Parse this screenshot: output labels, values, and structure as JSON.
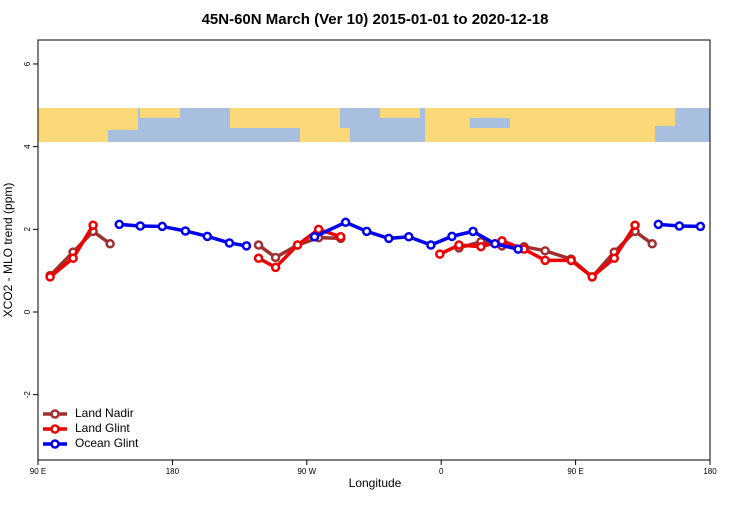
{
  "chart_data": {
    "type": "line",
    "title": "45N-60N March (Ver 10)   2015-01-01 to 2020-12-18",
    "x_label": "Longitude",
    "y_label": "XCO2 - MLO trend (ppm)",
    "xlim": [
      90,
      540
    ],
    "xticks": [
      {
        "value": 90,
        "label": "90 E"
      },
      {
        "value": 180,
        "label": "180"
      },
      {
        "value": 270,
        "label": "90 W"
      },
      {
        "value": 360,
        "label": "0"
      },
      {
        "value": 450,
        "label": "90 E"
      },
      {
        "value": 540,
        "label": "180"
      }
    ],
    "ylim": [
      -3.58,
      6.58
    ],
    "yticks": [
      -2,
      0,
      2,
      4,
      6
    ],
    "grid": false,
    "legend": "bottom-left",
    "series": [
      {
        "name": "Land Nadir",
        "color": "#a03030",
        "x": [
          98.1,
          113.5,
          126.9,
          138.3,
          190,
          237.7,
          249.1,
          263.8,
          277.9,
          292.7,
          330,
          371.9,
          386.6,
          400.7,
          415.5,
          429.6,
          447.0,
          461.1,
          475.9,
          489.8,
          501.3
        ],
        "values": [
          0.88,
          1.45,
          1.95,
          1.65,
          null,
          1.62,
          1.32,
          1.62,
          1.8,
          1.78,
          null,
          1.55,
          1.7,
          1.6,
          1.58,
          1.48,
          1.28,
          0.85,
          1.45,
          1.95,
          1.65
        ]
      },
      {
        "name": "Land Glint",
        "color": "#ee0000",
        "x": [
          98.1,
          113.5,
          126.9,
          180,
          237.7,
          249.1,
          263.8,
          277.9,
          292.7,
          330,
          359.1,
          371.9,
          386.6,
          400.7,
          415.5,
          429.6,
          447.0,
          461.1,
          475.9,
          489.8
        ],
        "values": [
          0.85,
          1.3,
          2.1,
          null,
          1.3,
          1.08,
          1.62,
          2.0,
          1.82,
          null,
          1.4,
          1.62,
          1.58,
          1.72,
          1.52,
          1.25,
          1.25,
          0.85,
          1.3,
          2.1
        ]
      },
      {
        "name": "Ocean Glint",
        "color": "#0000ee",
        "x": [
          144.4,
          158.5,
          173.2,
          188.7,
          203.4,
          218.2,
          229.6,
          250,
          275.2,
          296.0,
          310.1,
          324.9,
          338.3,
          353.1,
          367.2,
          381.3,
          396.0,
          411.5,
          460,
          505.4,
          519.5,
          533.6
        ],
        "values": [
          2.12,
          2.08,
          2.07,
          1.96,
          1.83,
          1.67,
          1.6,
          null,
          1.82,
          2.17,
          1.95,
          1.78,
          1.82,
          1.62,
          1.83,
          1.95,
          1.65,
          1.52,
          null,
          2.12,
          2.08,
          2.07
        ]
      }
    ]
  }
}
